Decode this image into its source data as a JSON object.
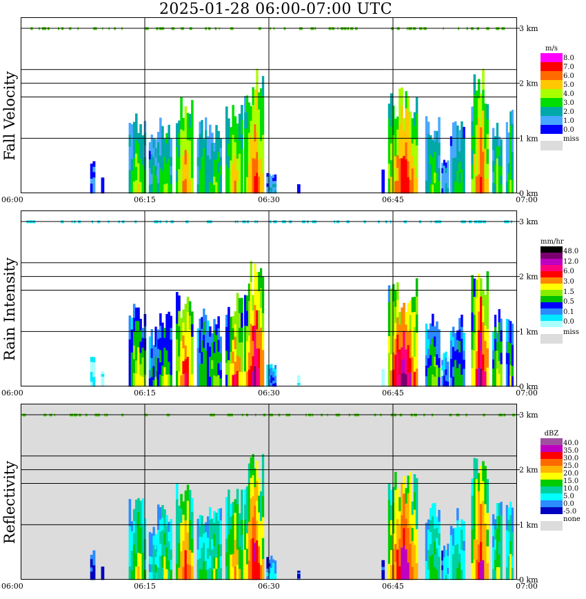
{
  "title": "2025-01-28   06:00-07:00 UTC",
  "chart_data": [
    {
      "type": "heatmap",
      "title": "Fall Velocity",
      "time_ticks": [
        "06:00",
        "06:15",
        "06:30",
        "06:45",
        "07:00"
      ],
      "height_ticks": [
        "0 km",
        "1 km",
        "2 km",
        "3 km"
      ],
      "ylim_km": [
        0,
        3.2
      ],
      "grid": true,
      "background": "#ffffff",
      "legend": {
        "unit": "m/s",
        "labels": [
          "8.0",
          "7.0",
          "6.0",
          "5.0",
          "4.0",
          "3.0",
          "2.0",
          "1.0",
          "0.0"
        ],
        "colors": [
          "#ff00ff",
          "#ff0000",
          "#ff6a00",
          "#ffc800",
          "#aaff00",
          "#00dd00",
          "#00a8a8",
          "#48a8ff",
          "#0000ff"
        ],
        "missing_label": "miss",
        "missing_color": "#dcdcdc"
      }
    },
    {
      "type": "heatmap",
      "title": "Rain Intensity",
      "time_ticks": [
        "06:00",
        "06:15",
        "06:30",
        "06:45",
        "07:00"
      ],
      "height_ticks": [
        "0 km",
        "1 km",
        "2 km",
        "3 km"
      ],
      "ylim_km": [
        0,
        3.2
      ],
      "grid": true,
      "background": "#ffffff",
      "legend": {
        "unit": "mm/hr",
        "labels": [
          "48.0",
          "12.0",
          "6.0",
          "3.0",
          "1.5",
          "0.5",
          "0.1",
          "0.0"
        ],
        "colors": [
          "#000000",
          "#7a0070",
          "#c000c0",
          "#ff0080",
          "#ff0000",
          "#ff8800",
          "#ffff00",
          "#88ee00",
          "#00c000",
          "#0000ff",
          "#2a8cff",
          "#00e8ff",
          "#aaffff"
        ],
        "missing_label": "miss",
        "missing_color": "#dcdcdc"
      }
    },
    {
      "type": "heatmap",
      "title": "Reflectivity",
      "time_ticks": [
        "06:00",
        "06:15",
        "06:30",
        "06:45",
        "07:00"
      ],
      "height_ticks": [
        "0 km",
        "1 km",
        "2 km",
        "3 km"
      ],
      "ylim_km": [
        0,
        3.2
      ],
      "grid": true,
      "background": "#dcdcdc",
      "legend": {
        "unit": "dBZ",
        "labels": [
          "40.0",
          "35.0",
          "30.0",
          "25.0",
          "20.0",
          "15.0",
          "10.0",
          "5.0",
          "0.0",
          "-5.0"
        ],
        "colors": [
          "#a050a0",
          "#c000c0",
          "#ff0000",
          "#ff6a00",
          "#ffb400",
          "#ffff00",
          "#00cc00",
          "#00d0a0",
          "#00ffff",
          "#2a8cff",
          "#0000c0"
        ],
        "missing_label": "none",
        "missing_color": "#dcdcdc"
      }
    }
  ]
}
